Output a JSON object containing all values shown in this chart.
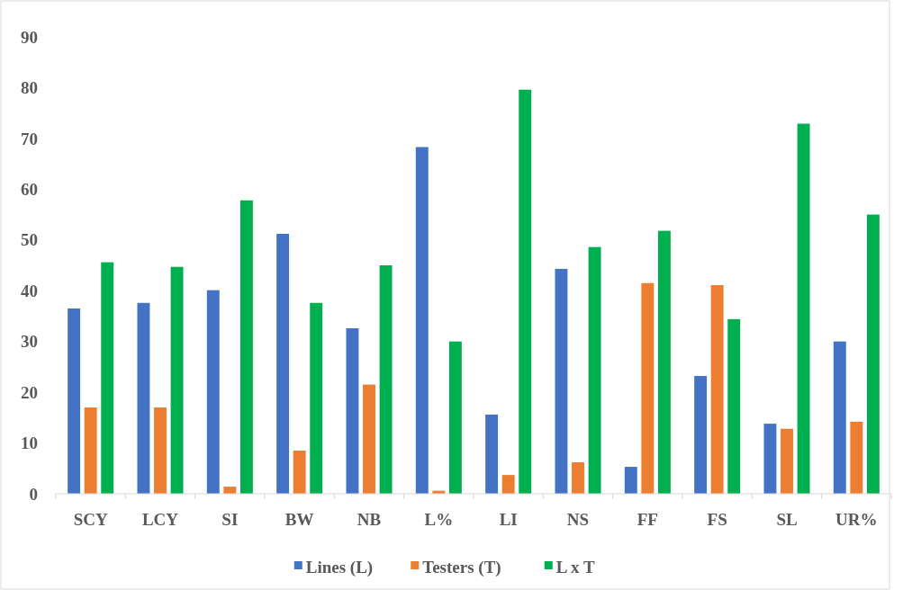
{
  "chart_data": {
    "type": "bar",
    "categories": [
      "SCY",
      "LCY",
      "SI",
      "BW",
      "NB",
      "L%",
      "LI",
      "NS",
      "FF",
      "FS",
      "SL",
      "UR%"
    ],
    "series": [
      {
        "name": "Lines (L)",
        "color": "#4472c4",
        "values": [
          36.5,
          37.6,
          40.1,
          51.2,
          32.6,
          68.3,
          15.6,
          44.3,
          5.3,
          23.2,
          13.8,
          30
        ]
      },
      {
        "name": "Testers (T)",
        "color": "#ed7d31",
        "values": [
          17,
          17,
          1.4,
          8.5,
          21.5,
          0.6,
          3.7,
          6.2,
          41.5,
          41.1,
          12.8,
          14.2
        ]
      },
      {
        "name": "L x T",
        "color": "#00b050",
        "values": [
          45.6,
          44.7,
          57.8,
          37.6,
          45,
          30,
          79.6,
          48.6,
          51.8,
          34.4,
          72.9,
          55
        ]
      }
    ],
    "ylim": [
      0,
      90
    ],
    "yticks": [
      0,
      10,
      20,
      30,
      40,
      50,
      60,
      70,
      80,
      90
    ],
    "grid": false,
    "legend": "bottom"
  }
}
